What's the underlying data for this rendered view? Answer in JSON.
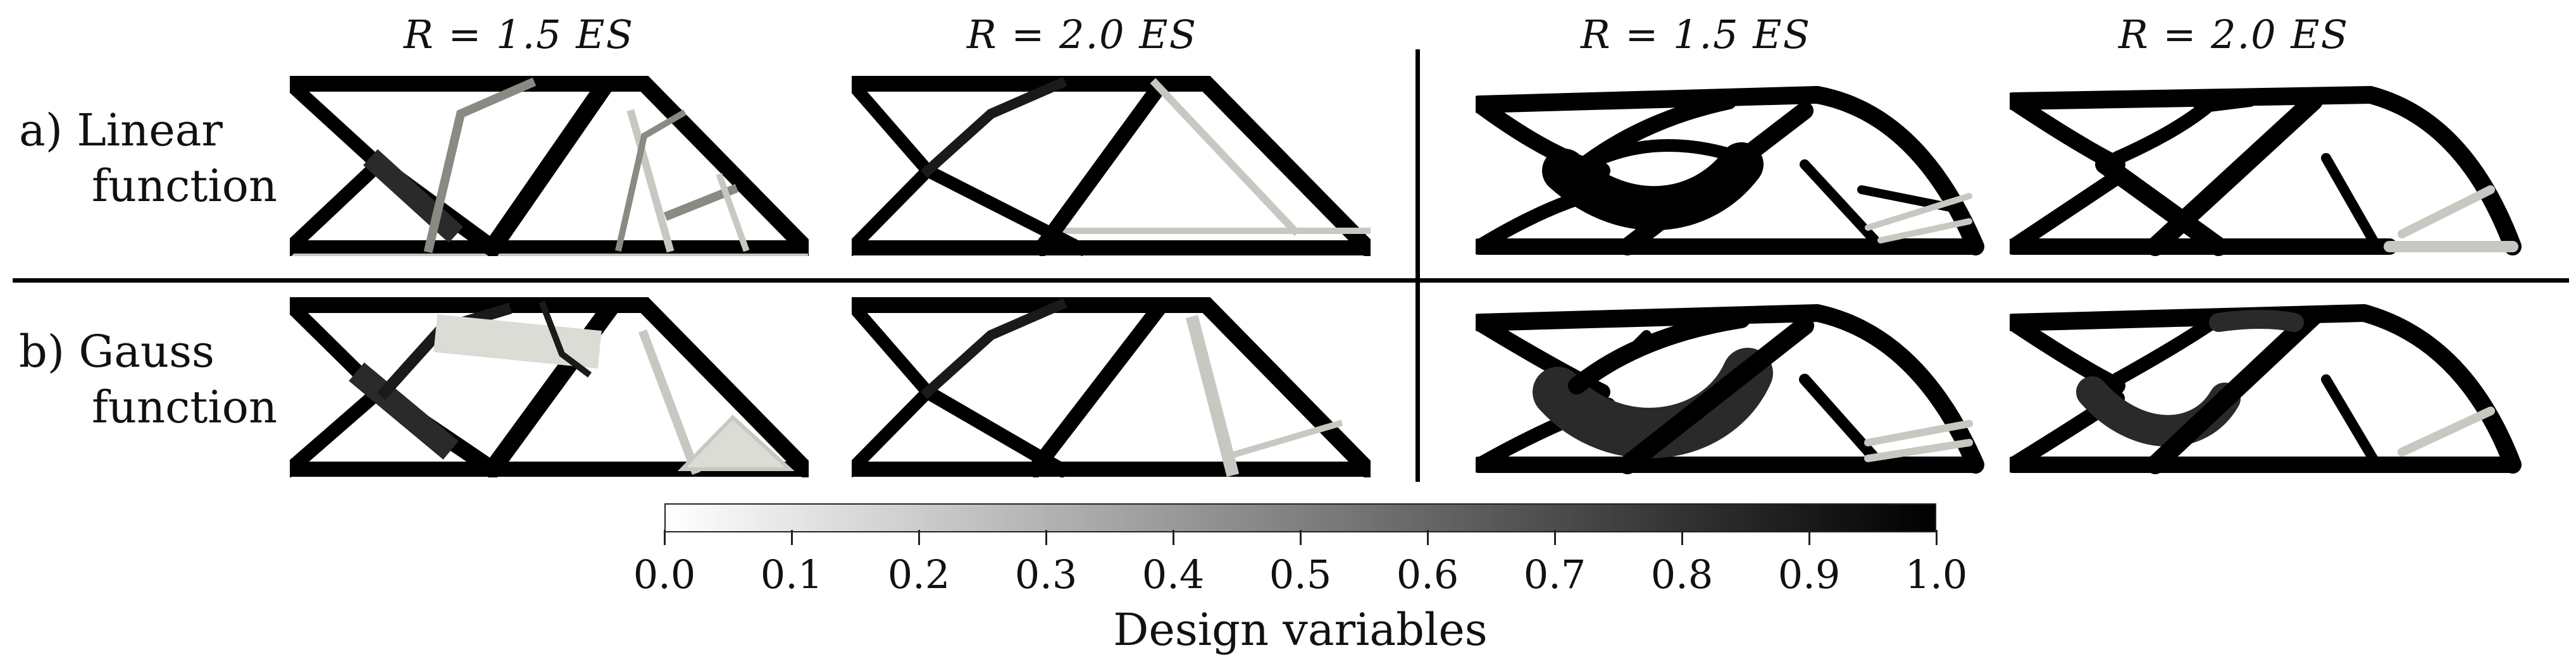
{
  "column_headers": [
    "R = 1.5 ES",
    "R = 2.0 ES",
    "R = 1.5 ES",
    "R = 2.0 ES"
  ],
  "rows": [
    {
      "label_prefix": "a)",
      "label_line1": "Linear",
      "label_line2": "function"
    },
    {
      "label_prefix": "b)",
      "label_line1": "Gauss",
      "label_line2": "function"
    }
  ],
  "colorbar": {
    "title": "Design variables",
    "min": 0.0,
    "max": 1.0,
    "tick_labels": [
      "0.0",
      "0.1",
      "0.2",
      "0.3",
      "0.4",
      "0.5",
      "0.6",
      "0.7",
      "0.8",
      "0.9",
      "1.0"
    ],
    "low_color": "#ffffff",
    "high_color": "#000000"
  },
  "colors": {
    "solid": "#000000",
    "dark_fill": "#2a2a2a",
    "gray_member": "#c8c8c2",
    "light_gray": "#dcdcd6",
    "background": "#ffffff"
  }
}
